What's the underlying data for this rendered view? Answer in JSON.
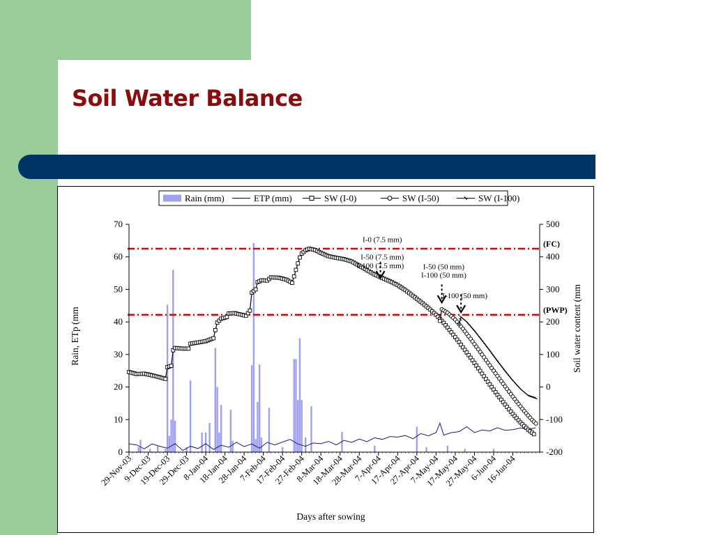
{
  "slide": {
    "title": "Soil Water Balance",
    "colors": {
      "accent_green": "#99cc99",
      "band_navy": "#003366",
      "title_red": "#8b0c0c"
    }
  },
  "chart_data": {
    "type": "line",
    "xlabel": "Days after sowing",
    "ylabel_left": "Rain, ETp (mm",
    "ylabel_right": "Soil water content (mm",
    "ylim_left": [
      0,
      70
    ],
    "ylim_right": [
      -200,
      500
    ],
    "yticks_left": [
      "0",
      "10",
      "20",
      "30",
      "40",
      "50",
      "60",
      "70"
    ],
    "yticks_right": [
      "-200",
      "-100",
      "0",
      "100",
      "200",
      "300",
      "400",
      "500"
    ],
    "xlim_days": [
      0,
      214
    ],
    "xticks": [
      "29-Nov-03",
      "9-Dec-03",
      "19-Dec-03",
      "29-Dec-03",
      "8-Jan-04",
      "18-Jan-04",
      "28-Jan-04",
      "7-Feb-04",
      "17-Feb-04",
      "27-Feb-04",
      "8-Mar-04",
      "18-Mar-04",
      "28-Mar-04",
      "7-Apr-04",
      "17-Apr-04",
      "27-Apr-04",
      "7-May-04",
      "17-May-04",
      "27-May-04",
      "6-Jun-04",
      "16-Jun-04"
    ],
    "legend": {
      "position": "top",
      "items": [
        {
          "name": "Rain (mm)",
          "style": "bar"
        },
        {
          "name": "ETP (mm)",
          "style": "line"
        },
        {
          "name": "SW (I-0)",
          "style": "square"
        },
        {
          "name": "SW (I-50)",
          "style": "circle"
        },
        {
          "name": "SW (I-100)",
          "style": "dash"
        }
      ]
    },
    "reference_lines": [
      {
        "label": "(FC)",
        "value": 62.5,
        "axis": "left",
        "color": "#e00000"
      },
      {
        "label": "(PWP)",
        "value": 42.2,
        "axis": "left",
        "color": "#e00000"
      }
    ],
    "annotations": [
      {
        "text": "I-0 (7.5 mm)",
        "day": 132,
        "value": 64.5
      },
      {
        "text": "I-50 (7.5 mm)",
        "day": 132,
        "value": 59.2
      },
      {
        "text": "I-100 (7.5 mm)",
        "day": 131,
        "value": 56.5
      },
      {
        "text": "I-50 (50 mm)",
        "day": 164,
        "value": 56.2
      },
      {
        "text": "I-100 (50 mm)",
        "day": 164,
        "value": 53.6
      },
      {
        "text": "I-100 (50 mm)",
        "day": 175,
        "value": 47.3
      }
    ],
    "arrows": [
      {
        "day": 131,
        "from_value": 58.5,
        "to_value": 53.5
      },
      {
        "day": 163,
        "from_value": 51.5,
        "to_value": 46.0
      },
      {
        "day": 173,
        "from_value": 48.5,
        "to_value": 43.0
      }
    ],
    "rain": {
      "name": "Rain (mm)",
      "color": "#a0a0f0",
      "points": [
        [
          5,
          1.5
        ],
        [
          6,
          3.8
        ],
        [
          11,
          1.0
        ],
        [
          15,
          2.0
        ],
        [
          19,
          1.0
        ],
        [
          20,
          45.3
        ],
        [
          21,
          5.0
        ],
        [
          22,
          10.0
        ],
        [
          23,
          56.0
        ],
        [
          24,
          9.7
        ],
        [
          30,
          1.5
        ],
        [
          32,
          22.0
        ],
        [
          38,
          6.0
        ],
        [
          40,
          6.0
        ],
        [
          42,
          9.0
        ],
        [
          45,
          32.0
        ],
        [
          46,
          20.0
        ],
        [
          47,
          6.0
        ],
        [
          48,
          14.5
        ],
        [
          53,
          13.0
        ],
        [
          54,
          3.5
        ],
        [
          64,
          26.7
        ],
        [
          65,
          64.3
        ],
        [
          66,
          4.0
        ],
        [
          67,
          15.4
        ],
        [
          68,
          26.9
        ],
        [
          69,
          4.5
        ],
        [
          73,
          13.6
        ],
        [
          80,
          1.5
        ],
        [
          86,
          28.6
        ],
        [
          87,
          28.6
        ],
        [
          88,
          16.0
        ],
        [
          89,
          35.0
        ],
        [
          90,
          16.0
        ],
        [
          92,
          4.5
        ],
        [
          95,
          14.1
        ],
        [
          111,
          6.2
        ],
        [
          128,
          2.0
        ],
        [
          150,
          7.8
        ],
        [
          155,
          1.5
        ],
        [
          166,
          2.0
        ],
        [
          175,
          1.0
        ],
        [
          190,
          1.0
        ]
      ]
    },
    "etp": {
      "name": "ETP (mm)",
      "color": "#1a1a80",
      "points": [
        [
          0,
          2.5
        ],
        [
          4,
          2.2
        ],
        [
          8,
          1.0
        ],
        [
          12,
          2.5
        ],
        [
          16,
          1.8
        ],
        [
          20,
          1.2
        ],
        [
          24,
          2.6
        ],
        [
          28,
          0.5
        ],
        [
          32,
          1.8
        ],
        [
          36,
          1.1
        ],
        [
          40,
          2.6
        ],
        [
          44,
          0.8
        ],
        [
          48,
          2.1
        ],
        [
          52,
          1.5
        ],
        [
          56,
          3.0
        ],
        [
          60,
          1.7
        ],
        [
          64,
          2.5
        ],
        [
          68,
          1.2
        ],
        [
          72,
          3.0
        ],
        [
          76,
          2.2
        ],
        [
          80,
          3.1
        ],
        [
          84,
          3.9
        ],
        [
          88,
          2.5
        ],
        [
          92,
          1.8
        ],
        [
          96,
          2.8
        ],
        [
          100,
          2.6
        ],
        [
          104,
          3.3
        ],
        [
          108,
          2.2
        ],
        [
          112,
          3.6
        ],
        [
          116,
          3.0
        ],
        [
          120,
          4.0
        ],
        [
          124,
          3.2
        ],
        [
          128,
          4.4
        ],
        [
          132,
          3.9
        ],
        [
          136,
          4.8
        ],
        [
          140,
          4.6
        ],
        [
          144,
          5.1
        ],
        [
          148,
          4.1
        ],
        [
          152,
          5.7
        ],
        [
          156,
          5.0
        ],
        [
          160,
          6.0
        ],
        [
          162,
          8.9
        ],
        [
          164,
          5.2
        ],
        [
          168,
          6.0
        ],
        [
          172,
          6.3
        ],
        [
          176,
          7.8
        ],
        [
          180,
          6.0
        ],
        [
          184,
          6.8
        ],
        [
          188,
          6.5
        ],
        [
          192,
          7.5
        ],
        [
          196,
          6.7
        ],
        [
          200,
          6.9
        ],
        [
          204,
          7.4
        ],
        [
          208,
          7.0
        ],
        [
          212,
          7.5
        ]
      ]
    },
    "sw_i0": {
      "name": "SW (I-0)",
      "color": "#000000",
      "points": [
        [
          0,
          24.6
        ],
        [
          4,
          24.0
        ],
        [
          8,
          24.1
        ],
        [
          12,
          23.6
        ],
        [
          16,
          23.0
        ],
        [
          19,
          22.5
        ],
        [
          20,
          26.1
        ],
        [
          22,
          26.5
        ],
        [
          23,
          31.3
        ],
        [
          24,
          32.0
        ],
        [
          28,
          31.8
        ],
        [
          31,
          31.8
        ],
        [
          32,
          33.3
        ],
        [
          36,
          33.7
        ],
        [
          40,
          34.1
        ],
        [
          44,
          35.0
        ],
        [
          45,
          37.5
        ],
        [
          46,
          39.8
        ],
        [
          48,
          41.0
        ],
        [
          51,
          41.5
        ],
        [
          52,
          42.6
        ],
        [
          55,
          42.7
        ],
        [
          58,
          42.3
        ],
        [
          61,
          41.9
        ],
        [
          63,
          43.5
        ],
        [
          64,
          49.0
        ],
        [
          66,
          50.0
        ],
        [
          67,
          52.2
        ],
        [
          69,
          52.8
        ],
        [
          72,
          52.7
        ],
        [
          74,
          53.7
        ],
        [
          78,
          53.6
        ],
        [
          82,
          53.0
        ],
        [
          85,
          52.0
        ],
        [
          86,
          54.0
        ],
        [
          87,
          56.0
        ],
        [
          88,
          58.0
        ],
        [
          89,
          59.8
        ],
        [
          90,
          61.0
        ],
        [
          92,
          62.0
        ],
        [
          94,
          62.5
        ],
        [
          97,
          62.1
        ],
        [
          100,
          61.2
        ],
        [
          104,
          60.2
        ],
        [
          108,
          59.7
        ],
        [
          112,
          59.3
        ],
        [
          116,
          58.6
        ],
        [
          120,
          57.3
        ],
        [
          124,
          55.9
        ],
        [
          128,
          54.6
        ],
        [
          132,
          53.5
        ],
        [
          136,
          52.5
        ],
        [
          140,
          51.3
        ],
        [
          144,
          49.8
        ],
        [
          148,
          48.0
        ],
        [
          152,
          46.2
        ],
        [
          156,
          44.3
        ],
        [
          160,
          42.2
        ],
        [
          164,
          39.7
        ],
        [
          168,
          36.8
        ],
        [
          172,
          33.8
        ],
        [
          176,
          30.6
        ],
        [
          180,
          27.4
        ],
        [
          184,
          24.1
        ],
        [
          188,
          20.8
        ],
        [
          192,
          17.6
        ],
        [
          196,
          14.6
        ],
        [
          200,
          11.7
        ],
        [
          204,
          9.1
        ],
        [
          208,
          6.9
        ],
        [
          211,
          5.5
        ]
      ]
    },
    "sw_i50": {
      "name": "SW (I-50)",
      "color": "#000000",
      "points": [
        [
          162,
          40.3
        ],
        [
          163,
          43.9
        ],
        [
          166,
          42.8
        ],
        [
          170,
          40.7
        ],
        [
          174,
          37.9
        ],
        [
          178,
          34.8
        ],
        [
          182,
          31.6
        ],
        [
          186,
          28.3
        ],
        [
          190,
          25.0
        ],
        [
          194,
          21.8
        ],
        [
          198,
          18.6
        ],
        [
          202,
          15.5
        ],
        [
          206,
          12.6
        ],
        [
          210,
          9.9
        ],
        [
          212,
          8.8
        ]
      ]
    },
    "sw_i100": {
      "name": "SW (I-100)",
      "color": "#000000",
      "points": [
        [
          172,
          39.2
        ],
        [
          173,
          41.5
        ],
        [
          176,
          40.0
        ],
        [
          180,
          37.3
        ],
        [
          184,
          34.3
        ],
        [
          188,
          31.2
        ],
        [
          192,
          28.0
        ],
        [
          196,
          24.9
        ],
        [
          200,
          22.0
        ],
        [
          204,
          19.4
        ],
        [
          208,
          17.4
        ],
        [
          212,
          16.6
        ]
      ]
    }
  }
}
